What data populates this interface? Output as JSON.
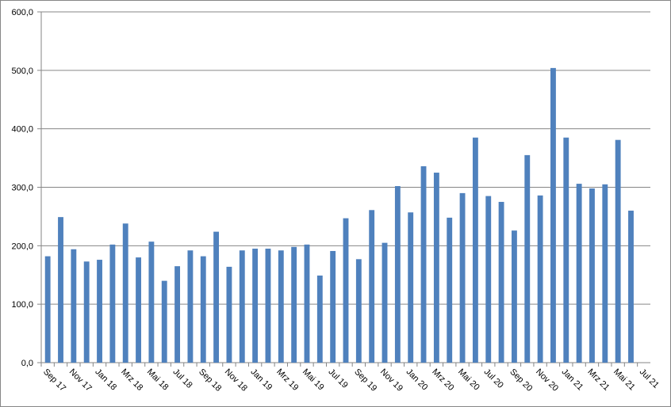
{
  "chart_data": {
    "type": "bar",
    "categories": [
      "Sep 17",
      null,
      "Nov 17",
      null,
      "Jan 18",
      null,
      "Mrz 18",
      null,
      "Mai 18",
      null,
      "Jul 18",
      null,
      "Sep 18",
      null,
      "Nov 18",
      null,
      "Jan 19",
      null,
      "Mrz 19",
      null,
      "Mai 19",
      null,
      "Jul 19",
      null,
      "Sep 19",
      null,
      "Nov 19",
      null,
      "Jan 20",
      null,
      "Mrz 20",
      null,
      "Mai 20",
      null,
      "Jul 20",
      null,
      "Sep 20",
      null,
      "Nov 20",
      null,
      "Jan 21",
      null,
      "Mrz 21",
      null,
      "Mai 21",
      null,
      "Jul 21"
    ],
    "values": [
      182,
      249,
      194,
      173,
      176,
      202,
      238,
      180,
      207,
      140,
      165,
      192,
      182,
      224,
      164,
      192,
      195,
      195,
      192,
      198,
      202,
      149,
      191,
      247,
      177,
      261,
      205,
      302,
      257,
      336,
      325,
      248,
      290,
      385,
      285,
      275,
      226,
      355,
      286,
      504,
      385,
      306,
      298,
      305,
      381,
      260,
      null
    ],
    "color": "#4f81bd",
    "ylim": [
      0,
      600
    ],
    "yticks": [
      {
        "value": 0,
        "label": "0,0"
      },
      {
        "value": 100,
        "label": "100,0"
      },
      {
        "value": 200,
        "label": "200,0"
      },
      {
        "value": 300,
        "label": "300,0"
      },
      {
        "value": 400,
        "label": "400,0"
      },
      {
        "value": 500,
        "label": "500,0"
      },
      {
        "value": 600,
        "label": "600,0"
      }
    ],
    "grid": true
  }
}
